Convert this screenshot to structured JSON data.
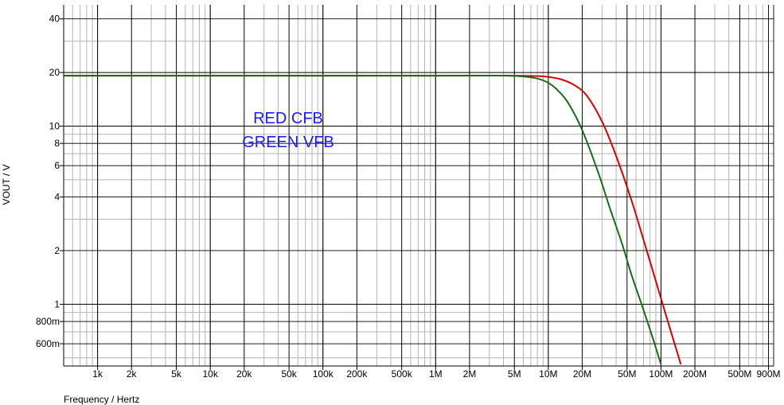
{
  "chart_data": {
    "type": "line",
    "title": "",
    "xlabel": "Frequency / Hertz",
    "ylabel": "VOUT / V",
    "x_scale": "log",
    "y_scale": "log",
    "xlim": [
      500,
      1000000000
    ],
    "ylim": [
      0.45,
      48
    ],
    "grid": true,
    "x_ticks": [
      {
        "value": 1000,
        "label": "1k"
      },
      {
        "value": 2000,
        "label": "2k"
      },
      {
        "value": 5000,
        "label": "5k"
      },
      {
        "value": 10000,
        "label": "10k"
      },
      {
        "value": 20000,
        "label": "20k"
      },
      {
        "value": 50000,
        "label": "50k"
      },
      {
        "value": 100000,
        "label": "100k"
      },
      {
        "value": 200000,
        "label": "200k"
      },
      {
        "value": 500000,
        "label": "500k"
      },
      {
        "value": 1000000,
        "label": "1M"
      },
      {
        "value": 2000000,
        "label": "2M"
      },
      {
        "value": 5000000,
        "label": "5M"
      },
      {
        "value": 10000000,
        "label": "10M"
      },
      {
        "value": 20000000,
        "label": "20M"
      },
      {
        "value": 50000000,
        "label": "50M"
      },
      {
        "value": 100000000,
        "label": "100M"
      },
      {
        "value": 200000000,
        "label": "200M"
      },
      {
        "value": 500000000,
        "label": "500M"
      },
      {
        "value": 900000000,
        "label": "900M"
      }
    ],
    "y_ticks": [
      {
        "value": 0.6,
        "label": "600m"
      },
      {
        "value": 0.8,
        "label": "800m"
      },
      {
        "value": 1,
        "label": "1"
      },
      {
        "value": 2,
        "label": "2"
      },
      {
        "value": 4,
        "label": "4"
      },
      {
        "value": 6,
        "label": "6"
      },
      {
        "value": 8,
        "label": "8"
      },
      {
        "value": 10,
        "label": "10"
      },
      {
        "value": 20,
        "label": "20"
      },
      {
        "value": 40,
        "label": "40"
      }
    ],
    "annotations": [
      "RED CFB",
      "GREEN VFB"
    ],
    "series": [
      {
        "color": "#dd0000",
        "x": [
          500,
          1000000,
          5000000,
          8000000,
          10000000,
          13000000,
          17000000,
          22000000,
          30000000,
          40000000,
          55000000,
          70000000,
          90000000,
          110000000,
          130000000,
          150000000
        ],
        "values": [
          19.2,
          19.2,
          19.2,
          19.1,
          18.9,
          18.3,
          17.0,
          14.8,
          10.6,
          6.8,
          3.8,
          2.3,
          1.35,
          0.88,
          0.62,
          0.46
        ]
      },
      {
        "color": "#1a6b1a",
        "x": [
          500,
          1000000,
          4000000,
          6000000,
          8000000,
          10000000,
          12000000,
          15000000,
          20000000,
          28000000,
          35000000,
          45000000,
          55000000,
          70000000,
          85000000,
          100000000
        ],
        "values": [
          19.2,
          19.2,
          19.2,
          19.0,
          18.5,
          17.5,
          16.0,
          13.5,
          9.5,
          5.4,
          3.5,
          2.2,
          1.45,
          0.93,
          0.64,
          0.46
        ]
      }
    ]
  }
}
